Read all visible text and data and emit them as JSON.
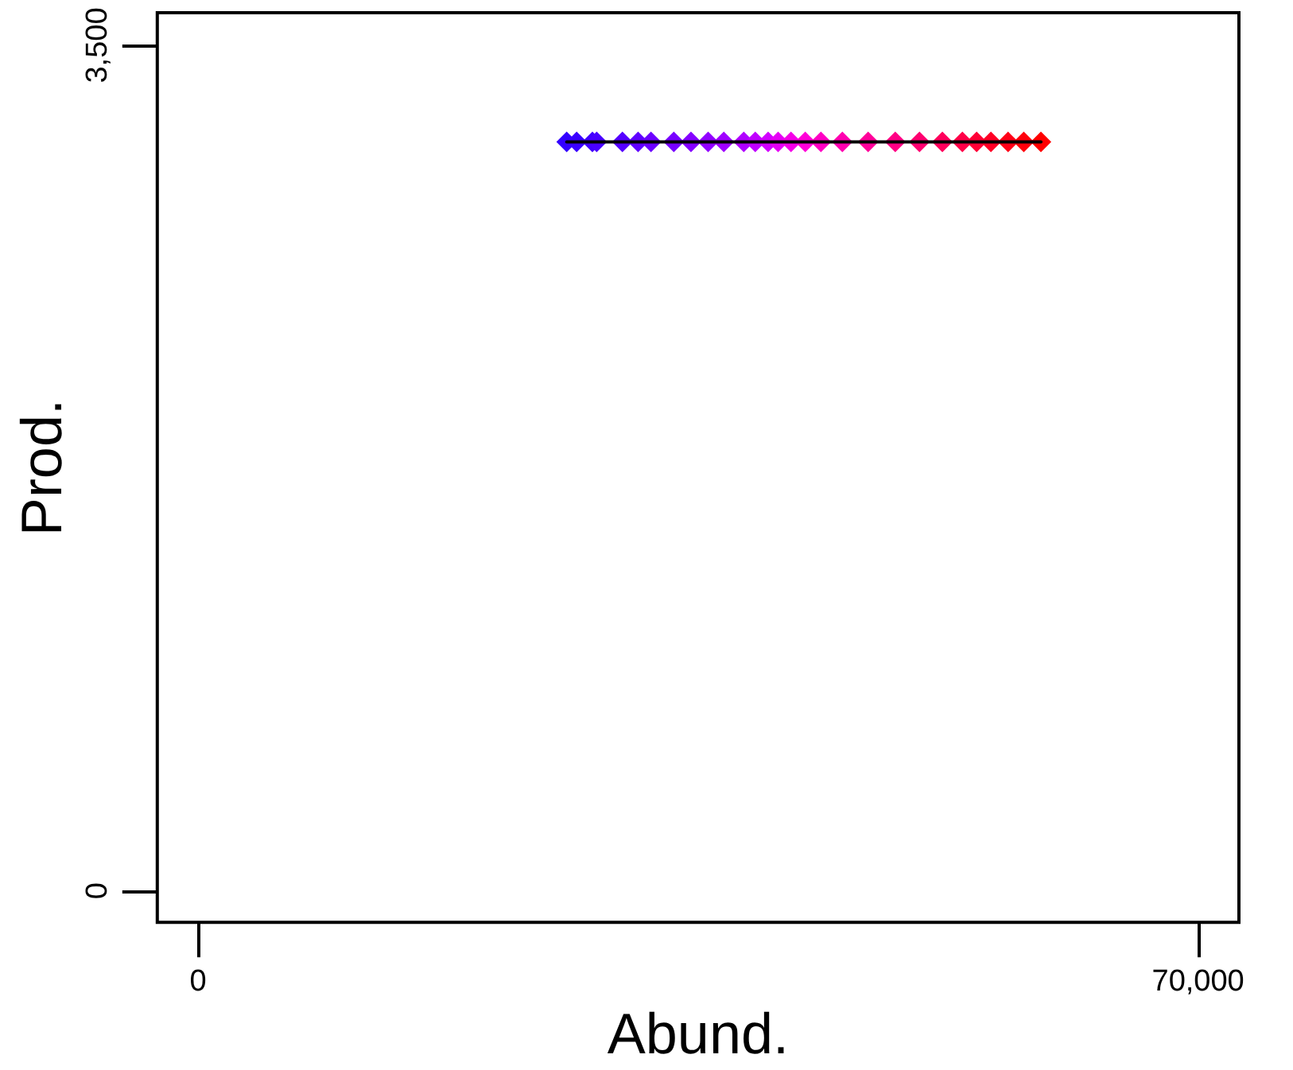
{
  "chart_data": {
    "type": "line",
    "xlabel": "Abund.",
    "ylabel": "Prod.",
    "x": [
      25800,
      26500,
      27600,
      27900,
      29700,
      30800,
      31700,
      33300,
      34500,
      35700,
      36800,
      38200,
      39000,
      39900,
      40600,
      41500,
      42500,
      43600,
      45100,
      46900,
      48800,
      50500,
      52100,
      53500,
      54500,
      55500,
      56700,
      57800,
      59000
    ],
    "series": [
      {
        "color": "#000000",
        "values": [
          3100,
          3100,
          3100,
          3100,
          3100,
          3100,
          3100,
          3100,
          3100,
          3100,
          3100,
          3100,
          3100,
          3100,
          3100,
          3100,
          3100,
          3100,
          3100,
          3100,
          3100,
          3100,
          3100,
          3100,
          3100,
          3100,
          3100,
          3100,
          3100
        ],
        "colors": [
          "#3300ff",
          "#3a00ff",
          "#4200ff",
          "#4a00ff",
          "#5500ff",
          "#6000ff",
          "#6c00ff",
          "#7800ff",
          "#8500ff",
          "#9200ff",
          "#a000ff",
          "#b000ff",
          "#c000ff",
          "#d200ff",
          "#e600f5",
          "#f500e8",
          "#ff00d8",
          "#ff00c4",
          "#ff00b0",
          "#ff009a",
          "#ff0085",
          "#ff0070",
          "#ff005c",
          "#ff0048",
          "#ff0036",
          "#ff0026",
          "#ff0018",
          "#ff000c",
          "#ff0000"
        ]
      }
    ],
    "xlim": [
      -2860,
      72860
    ],
    "ylim": [
      -130,
      3635
    ],
    "xticks": [
      0,
      {
        "value": 70000,
        "label": "70,000"
      }
    ],
    "yticks": [
      0,
      {
        "value": 3500,
        "label": "3,500"
      }
    ],
    "marker": "diamond",
    "line_style": "solid",
    "grid": false
  }
}
